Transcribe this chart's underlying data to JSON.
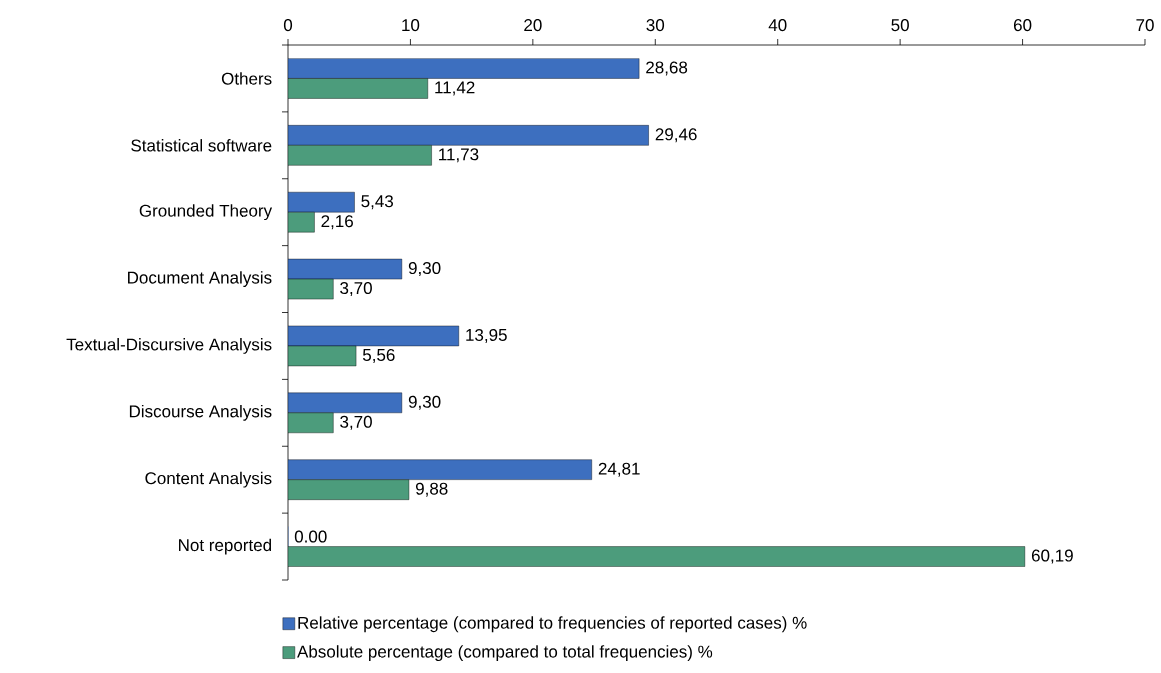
{
  "chart_data": {
    "type": "bar",
    "orientation": "horizontal",
    "categories": [
      "Others",
      "Statistical software",
      "Grounded Theory",
      "Document Analysis",
      "Textual-Discursive Analysis",
      "Discourse Analysis",
      "Content Analysis",
      "Not reported"
    ],
    "series": [
      {
        "name": "Relative percentage (compared to frequencies of reported cases) %",
        "color": "#3d6fbf",
        "values": [
          28.68,
          29.46,
          5.43,
          9.3,
          13.95,
          9.3,
          24.81,
          0.0
        ],
        "value_labels": [
          "28,68",
          "29,46",
          "5,43",
          "9,30",
          "13,95",
          "9,30",
          "24,81",
          "0.00"
        ]
      },
      {
        "name": "Absolute percentage (compared to total frequencies) %",
        "color": "#4c9c7c",
        "values": [
          11.42,
          11.73,
          2.16,
          3.7,
          5.56,
          3.7,
          9.88,
          60.19
        ],
        "value_labels": [
          "11,42",
          "11,73",
          "2,16",
          "3,70",
          "5,56",
          "3,70",
          "9,88",
          "60,19"
        ]
      }
    ],
    "xlim": [
      0,
      70
    ],
    "xticks": [
      0,
      10,
      20,
      30,
      40,
      50,
      60,
      70
    ],
    "grid": false,
    "legend": "bottom"
  }
}
